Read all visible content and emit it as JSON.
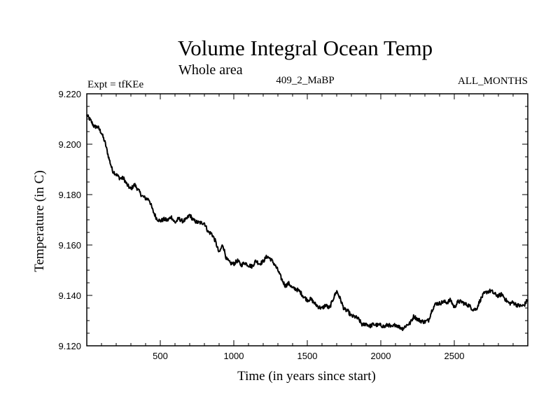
{
  "chart_data": {
    "type": "line",
    "title": "Volume Integral Ocean Temp",
    "subtitle": "Whole area",
    "annotations": {
      "left": "Expt = tfKEe",
      "center": "409_2_MaBP",
      "right": "ALL_MONTHS"
    },
    "xlabel": "Time (in years since start)",
    "ylabel": "Temperature (in C)",
    "xlim": [
      0,
      3000
    ],
    "ylim": [
      9.12,
      9.22
    ],
    "xticks": [
      500,
      1000,
      1500,
      2000,
      2500
    ],
    "yticks": [
      "9.120",
      "9.140",
      "9.160",
      "9.180",
      "9.200",
      "9.220"
    ],
    "grid": false,
    "series": [
      {
        "x": [
          0,
          25,
          50,
          75,
          100,
          125,
          150,
          175,
          200,
          225,
          250,
          275,
          300,
          325,
          350,
          375,
          400,
          425,
          450,
          475,
          500,
          525,
          550,
          575,
          600,
          625,
          650,
          675,
          700,
          725,
          750,
          775,
          800,
          825,
          850,
          875,
          900,
          925,
          950,
          975,
          1000,
          1025,
          1050,
          1075,
          1100,
          1125,
          1150,
          1175,
          1200,
          1225,
          1250,
          1275,
          1300,
          1325,
          1350,
          1375,
          1400,
          1425,
          1450,
          1475,
          1500,
          1525,
          1550,
          1575,
          1600,
          1625,
          1650,
          1675,
          1700,
          1725,
          1750,
          1775,
          1800,
          1825,
          1850,
          1875,
          1900,
          1925,
          1950,
          1975,
          2000,
          2025,
          2050,
          2075,
          2100,
          2125,
          2150,
          2175,
          2200,
          2225,
          2250,
          2275,
          2300,
          2325,
          2350,
          2375,
          2400,
          2425,
          2450,
          2475,
          2500,
          2525,
          2550,
          2575,
          2600,
          2625,
          2650,
          2675,
          2700,
          2725,
          2750,
          2775,
          2800,
          2825,
          2850,
          2875,
          2900,
          2925,
          2950,
          2975,
          3000
        ],
        "values": [
          9.2115,
          9.2095,
          9.207,
          9.2068,
          9.2045,
          9.2005,
          9.1945,
          9.1895,
          9.188,
          9.1865,
          9.1865,
          9.1838,
          9.1822,
          9.184,
          9.1818,
          9.1795,
          9.1785,
          9.178,
          9.1735,
          9.1705,
          9.1695,
          9.1702,
          9.1698,
          9.1712,
          9.1688,
          9.1705,
          9.1695,
          9.17,
          9.172,
          9.1698,
          9.169,
          9.1688,
          9.1688,
          9.1652,
          9.1645,
          9.1615,
          9.1568,
          9.1602,
          9.1545,
          9.1528,
          9.1525,
          9.1538,
          9.152,
          9.153,
          9.152,
          9.1515,
          9.1538,
          9.1525,
          9.1535,
          9.1555,
          9.1545,
          9.1525,
          9.15,
          9.1465,
          9.1438,
          9.1448,
          9.1428,
          9.1425,
          9.1415,
          9.1395,
          9.1382,
          9.1385,
          9.1368,
          9.1355,
          9.1348,
          9.1362,
          9.1348,
          9.1385,
          9.1418,
          9.1385,
          9.1345,
          9.1338,
          9.1318,
          9.1315,
          9.1305,
          9.1282,
          9.1288,
          9.1278,
          9.1285,
          9.1282,
          9.1282,
          9.1275,
          9.1285,
          9.1272,
          9.1285,
          9.1275,
          9.1268,
          9.1282,
          9.129,
          9.1318,
          9.1305,
          9.1298,
          9.1295,
          9.1302,
          9.1345,
          9.1368,
          9.1368,
          9.1375,
          9.1372,
          9.1382,
          9.1352,
          9.1375,
          9.1375,
          9.1365,
          9.136,
          9.1345,
          9.1345,
          9.138,
          9.1405,
          9.1415,
          9.1418,
          9.1405,
          9.1398,
          9.1405,
          9.1382,
          9.1368,
          9.1372,
          9.1362,
          9.1358,
          9.136,
          9.1385
        ]
      }
    ]
  }
}
